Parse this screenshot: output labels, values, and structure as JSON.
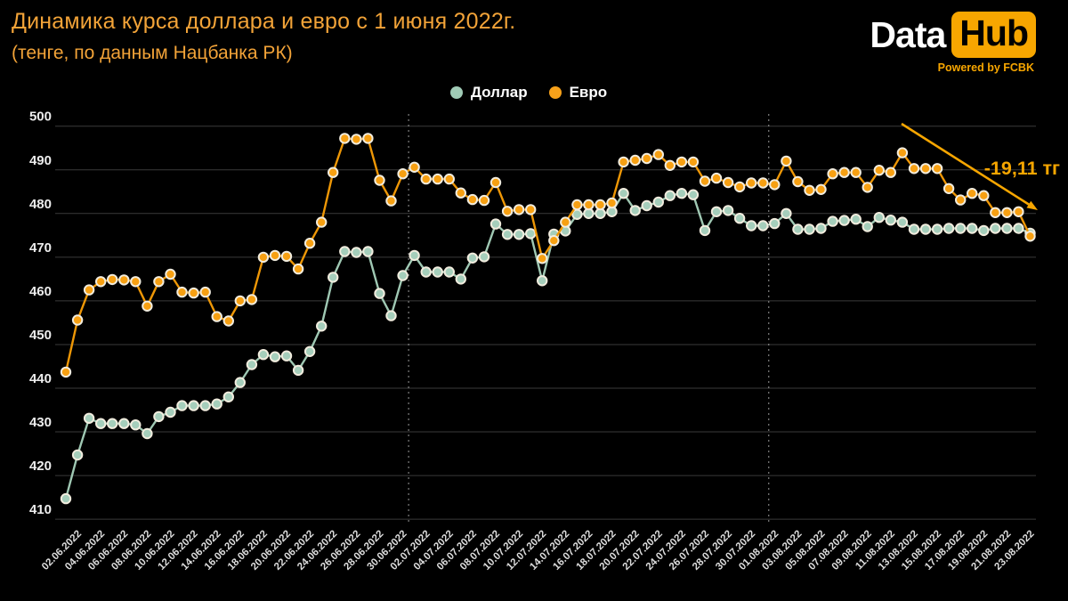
{
  "title": {
    "line1": "Динамика курса доллара и евро с 1 июня 2022г.",
    "line2": "(тенге, по данным Нацбанка РК)"
  },
  "logo": {
    "part1": "Data",
    "part2": "Hub",
    "powered": "Powered by FCBK"
  },
  "legend": [
    {
      "label": "Доллар",
      "color": "#A0CBB6"
    },
    {
      "label": "Евро",
      "color": "#F7A11A"
    }
  ],
  "annotation": {
    "text": "-19,11 тг",
    "color": "#F7A600"
  },
  "chart_data": {
    "type": "line",
    "title": "Динамика курса доллара и евро с 1 июня 2022г. (тенге, по данным Нацбанка РК)",
    "ylim": [
      410,
      500
    ],
    "yticks": [
      410,
      420,
      430,
      440,
      450,
      460,
      470,
      480,
      490,
      500
    ],
    "grid": true,
    "legend_position": "top-center",
    "x_labels": [
      "02.06.2022",
      "04.06.2022",
      "06.06.2022",
      "08.06.2022",
      "10.06.2022",
      "12.06.2022",
      "14.06.2022",
      "16.06.2022",
      "18.06.2022",
      "20.06.2022",
      "22.06.2022",
      "24.06.2022",
      "26.06.2022",
      "28.06.2022",
      "30.06.2022",
      "02.07.2022",
      "04.07.2022",
      "06.07.2022",
      "08.07.2022",
      "10.07.2022",
      "12.07.2022",
      "14.07.2022",
      "16.07.2022",
      "18.07.2022",
      "20.07.2022",
      "22.07.2022",
      "24.07.2022",
      "26.07.2022",
      "28.07.2022",
      "30.07.2022",
      "01.08.2022",
      "03.08.2022",
      "05.08.2022",
      "07.08.2022",
      "09.08.2022",
      "11.08.2022",
      "13.08.2022",
      "15.08.2022",
      "17.08.2022",
      "19.08.2022",
      "21.08.2022",
      "23.08.2022"
    ],
    "x_label_every_nth_point": 2,
    "separator_after_points": [
      29,
      60
    ],
    "series": [
      {
        "name": "Доллар",
        "color": "#9FC8B3",
        "dot_color": "#A5CEBB",
        "values": [
          414.7,
          424.7,
          433.1,
          431.9,
          431.9,
          431.9,
          431.6,
          429.6,
          433.5,
          434.5,
          436.0,
          436.0,
          436.0,
          436.4,
          438.0,
          441.3,
          445.4,
          447.7,
          447.2,
          447.4,
          444.1,
          448.4,
          454.2,
          465.4,
          471.3,
          471.1,
          471.3,
          461.7,
          456.6,
          465.8,
          470.4,
          466.6,
          466.6,
          466.6,
          465.0,
          469.8,
          470.1,
          477.6,
          475.2,
          475.2,
          475.4,
          464.6,
          475.3,
          476.0,
          479.8,
          480.0,
          480.0,
          480.4,
          484.6,
          480.7,
          481.8,
          482.6,
          484.1,
          484.6,
          484.3,
          476.1,
          480.4,
          480.7,
          478.9,
          477.2,
          477.2,
          477.7,
          480.0,
          476.4,
          476.4,
          476.6,
          478.2,
          478.4,
          478.7,
          477.0,
          479.1,
          478.5,
          478.0,
          476.4,
          476.4,
          476.4,
          476.6,
          476.6,
          476.6,
          476.1,
          476.6,
          476.6,
          476.6,
          475.5
        ]
      },
      {
        "name": "Евро",
        "color": "#EE9706",
        "dot_color": "#F7A012",
        "values": [
          443.7,
          455.6,
          462.5,
          464.4,
          464.9,
          464.8,
          464.4,
          458.8,
          464.4,
          466.1,
          462.0,
          461.8,
          462.0,
          456.4,
          455.4,
          460.0,
          460.3,
          470.0,
          470.4,
          470.2,
          467.3,
          473.2,
          478.0,
          489.4,
          497.2,
          497.0,
          497.2,
          487.6,
          482.9,
          489.1,
          490.6,
          487.9,
          487.9,
          487.9,
          484.7,
          483.2,
          483.0,
          487.1,
          480.5,
          480.9,
          480.9,
          469.7,
          473.8,
          478.0,
          482.0,
          482.0,
          482.0,
          482.4,
          491.8,
          492.2,
          492.6,
          493.5,
          491.0,
          491.8,
          491.8,
          487.4,
          488.1,
          487.1,
          486.1,
          487.0,
          487.0,
          486.6,
          492.0,
          487.3,
          485.3,
          485.5,
          489.1,
          489.4,
          489.4,
          486.0,
          489.9,
          489.4,
          493.9,
          490.3,
          490.3,
          490.3,
          485.7,
          483.1,
          484.6,
          484.1,
          480.2,
          480.2,
          480.4,
          474.8
        ]
      }
    ],
    "colors": {
      "grid": "#3A3A3A",
      "ytick": "#EDEDED",
      "xtick": "#DCDCDC",
      "separator": "#9A9A9A",
      "dot_border": "#F1ECDE"
    }
  }
}
